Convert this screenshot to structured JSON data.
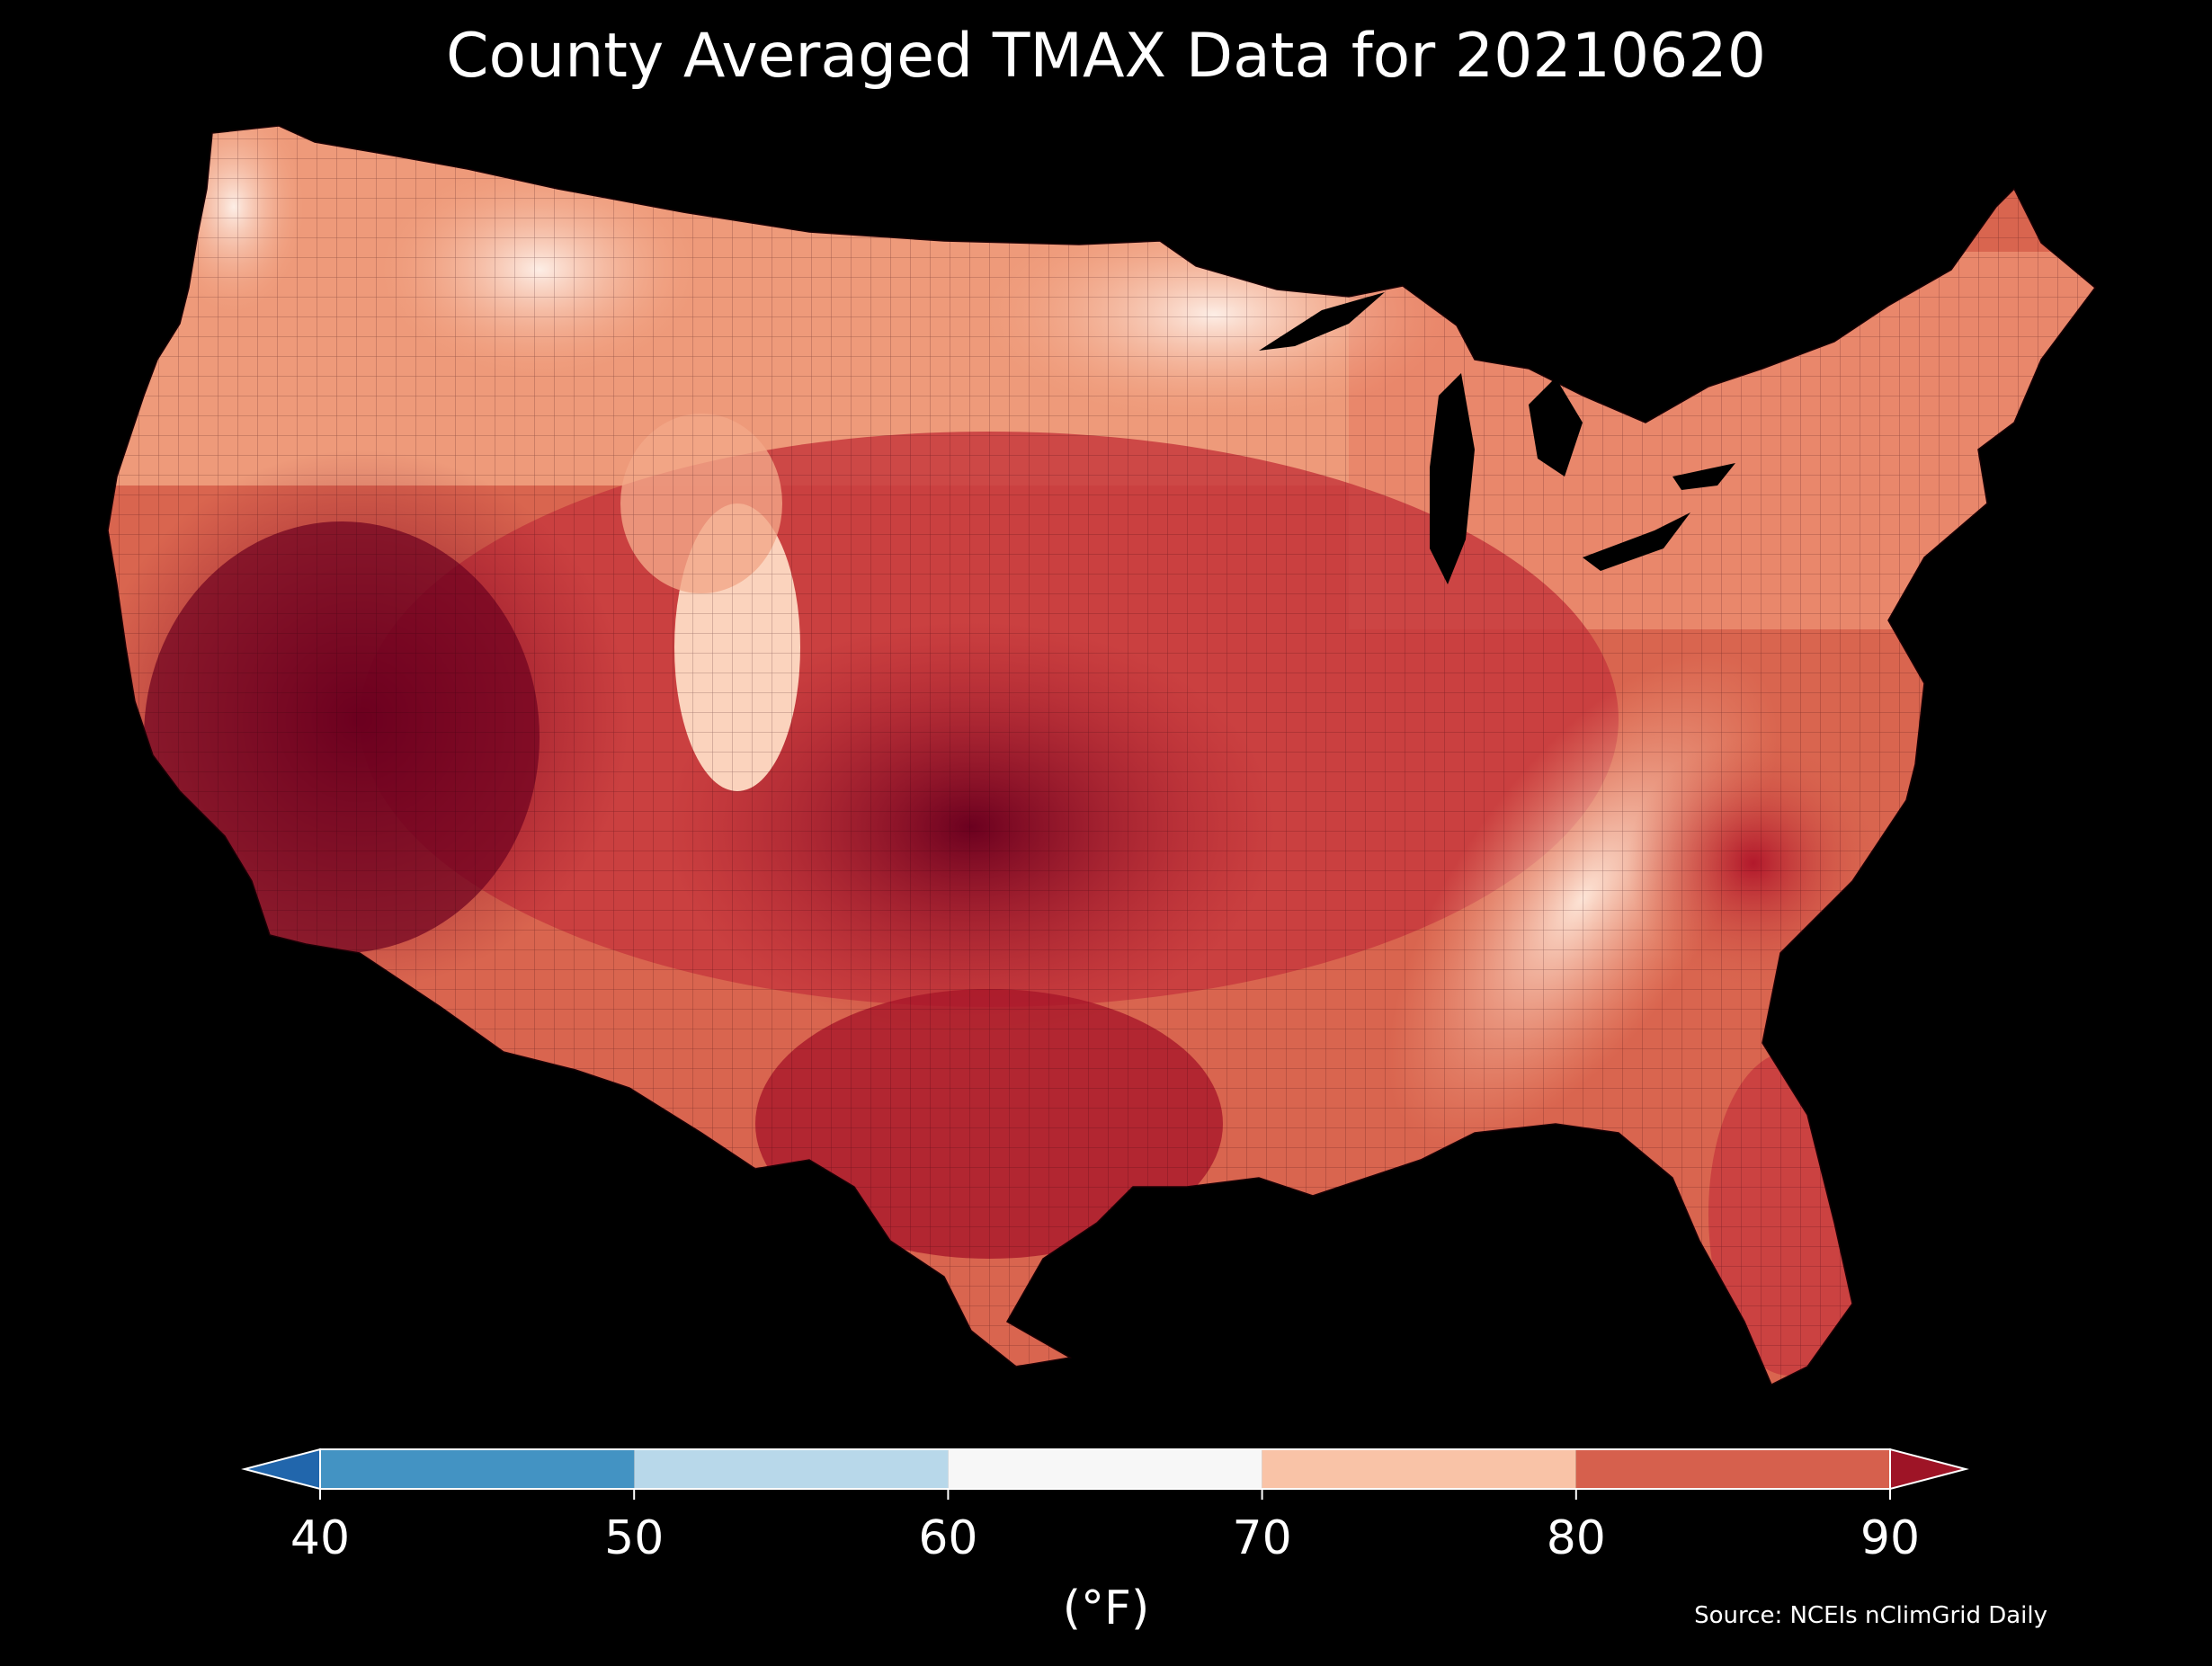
{
  "title": "County Averaged TMAX Data for 20210620",
  "source": "Source: NCEIs nClimGrid Daily",
  "colorbar": {
    "unit_label": "(°F)",
    "ticks": [
      "40",
      "50",
      "60",
      "70",
      "80",
      "90"
    ],
    "bins": [
      {
        "range": "<40",
        "color": "#2166ac"
      },
      {
        "range": "40-50",
        "color": "#4393c3"
      },
      {
        "range": "50-60",
        "color": "#b8d8ea"
      },
      {
        "range": "60-70",
        "color": "#f7f7f7"
      },
      {
        "range": "70-80",
        "color": "#f9c3a7"
      },
      {
        "range": "80-90",
        "color": "#d6604d"
      },
      {
        "range": ">90",
        "color": "#9e1426"
      }
    ],
    "extend": "both"
  },
  "map": {
    "region": "Contiguous United States",
    "unit": "county",
    "variable": "TMAX",
    "palette": {
      "mild": "#fde4d6",
      "warm": "#f4a582",
      "hot": "#d6604d",
      "hotter": "#b2182b",
      "hottest": "#67001f",
      "water": "#000000",
      "borders": "#2a0008"
    }
  }
}
